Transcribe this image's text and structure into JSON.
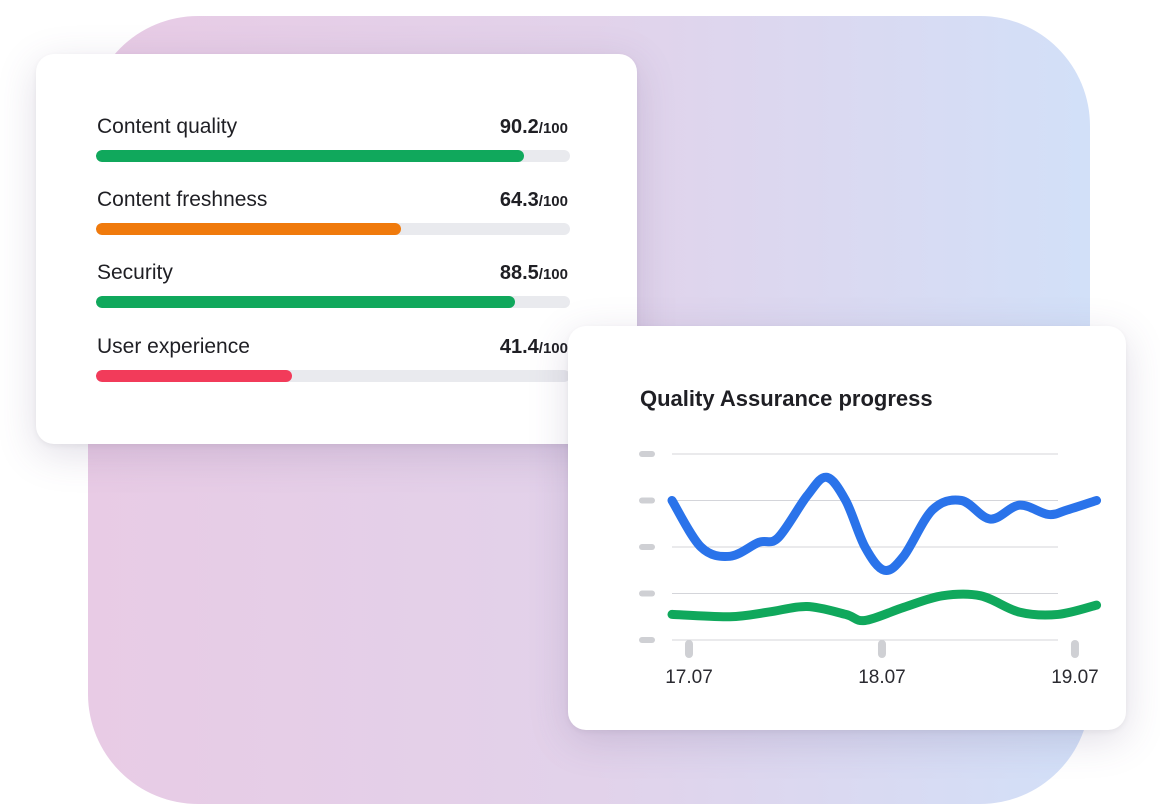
{
  "scores": {
    "metrics": [
      {
        "label": "Content quality",
        "value": "90.2",
        "max": "/100",
        "fraction": 0.902,
        "color": "#10a85c"
      },
      {
        "label": "Content freshness",
        "value": "64.3",
        "max": "/100",
        "fraction": 0.643,
        "color": "#f07a0c"
      },
      {
        "label": "Security",
        "value": "88.5",
        "max": "/100",
        "fraction": 0.885,
        "color": "#10a85c"
      },
      {
        "label": "User experience",
        "value": "41.4",
        "max": "/100",
        "fraction": 0.414,
        "color": "#f23b5a"
      }
    ]
  },
  "chart_data": {
    "type": "line",
    "title": "Quality Assurance progress",
    "xlabel": "",
    "ylabel": "",
    "ylim": [
      0,
      4
    ],
    "x_ticks": [
      "17.07",
      "18.07",
      "19.07"
    ],
    "grid": true,
    "y_tick_labels_visible": false,
    "series": [
      {
        "color": "#2a73ea",
        "x": [
          0.0,
          0.15,
          0.3,
          0.45,
          0.55,
          0.7,
          0.8,
          0.9,
          1.0,
          1.1,
          1.2,
          1.35,
          1.5,
          1.65,
          1.8,
          1.95,
          2.05,
          2.2
        ],
        "y": [
          3.0,
          2.0,
          1.8,
          2.1,
          2.2,
          3.1,
          3.5,
          3.0,
          2.0,
          1.5,
          1.8,
          2.8,
          3.0,
          2.6,
          2.9,
          2.7,
          2.8,
          3.0
        ]
      },
      {
        "color": "#10a85c",
        "x": [
          0.0,
          0.3,
          0.5,
          0.7,
          0.9,
          1.0,
          1.2,
          1.4,
          1.6,
          1.8,
          2.0,
          2.2
        ],
        "y": [
          0.55,
          0.5,
          0.6,
          0.72,
          0.55,
          0.42,
          0.7,
          0.95,
          0.95,
          0.6,
          0.55,
          0.75
        ]
      }
    ]
  }
}
